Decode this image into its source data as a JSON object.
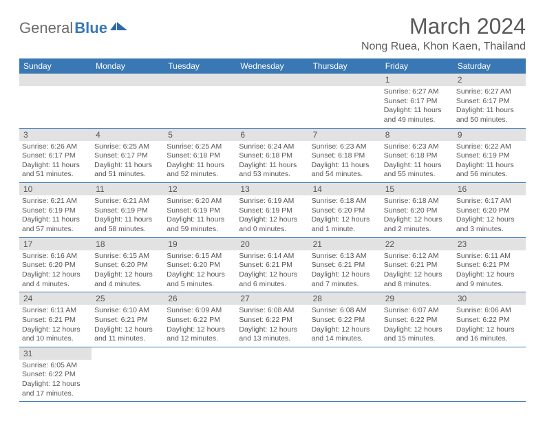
{
  "logo": {
    "text1": "General",
    "text2": "Blue"
  },
  "header": {
    "month_title": "March 2024",
    "location": "Nong Ruea, Khon Kaen, Thailand"
  },
  "colors": {
    "header_bg": "#3a78b5",
    "header_fg": "#ffffff",
    "daynum_bg": "#e2e2e2",
    "row_border": "#3a78b5",
    "text": "#555555"
  },
  "weekdays": [
    "Sunday",
    "Monday",
    "Tuesday",
    "Wednesday",
    "Thursday",
    "Friday",
    "Saturday"
  ],
  "weeks": [
    [
      null,
      null,
      null,
      null,
      null,
      {
        "n": "1",
        "sr": "Sunrise: 6:27 AM",
        "ss": "Sunset: 6:17 PM",
        "d1": "Daylight: 11 hours",
        "d2": "and 49 minutes."
      },
      {
        "n": "2",
        "sr": "Sunrise: 6:27 AM",
        "ss": "Sunset: 6:17 PM",
        "d1": "Daylight: 11 hours",
        "d2": "and 50 minutes."
      }
    ],
    [
      {
        "n": "3",
        "sr": "Sunrise: 6:26 AM",
        "ss": "Sunset: 6:17 PM",
        "d1": "Daylight: 11 hours",
        "d2": "and 51 minutes."
      },
      {
        "n": "4",
        "sr": "Sunrise: 6:25 AM",
        "ss": "Sunset: 6:17 PM",
        "d1": "Daylight: 11 hours",
        "d2": "and 51 minutes."
      },
      {
        "n": "5",
        "sr": "Sunrise: 6:25 AM",
        "ss": "Sunset: 6:18 PM",
        "d1": "Daylight: 11 hours",
        "d2": "and 52 minutes."
      },
      {
        "n": "6",
        "sr": "Sunrise: 6:24 AM",
        "ss": "Sunset: 6:18 PM",
        "d1": "Daylight: 11 hours",
        "d2": "and 53 minutes."
      },
      {
        "n": "7",
        "sr": "Sunrise: 6:23 AM",
        "ss": "Sunset: 6:18 PM",
        "d1": "Daylight: 11 hours",
        "d2": "and 54 minutes."
      },
      {
        "n": "8",
        "sr": "Sunrise: 6:23 AM",
        "ss": "Sunset: 6:18 PM",
        "d1": "Daylight: 11 hours",
        "d2": "and 55 minutes."
      },
      {
        "n": "9",
        "sr": "Sunrise: 6:22 AM",
        "ss": "Sunset: 6:19 PM",
        "d1": "Daylight: 11 hours",
        "d2": "and 56 minutes."
      }
    ],
    [
      {
        "n": "10",
        "sr": "Sunrise: 6:21 AM",
        "ss": "Sunset: 6:19 PM",
        "d1": "Daylight: 11 hours",
        "d2": "and 57 minutes."
      },
      {
        "n": "11",
        "sr": "Sunrise: 6:21 AM",
        "ss": "Sunset: 6:19 PM",
        "d1": "Daylight: 11 hours",
        "d2": "and 58 minutes."
      },
      {
        "n": "12",
        "sr": "Sunrise: 6:20 AM",
        "ss": "Sunset: 6:19 PM",
        "d1": "Daylight: 11 hours",
        "d2": "and 59 minutes."
      },
      {
        "n": "13",
        "sr": "Sunrise: 6:19 AM",
        "ss": "Sunset: 6:19 PM",
        "d1": "Daylight: 12 hours",
        "d2": "and 0 minutes."
      },
      {
        "n": "14",
        "sr": "Sunrise: 6:18 AM",
        "ss": "Sunset: 6:20 PM",
        "d1": "Daylight: 12 hours",
        "d2": "and 1 minute."
      },
      {
        "n": "15",
        "sr": "Sunrise: 6:18 AM",
        "ss": "Sunset: 6:20 PM",
        "d1": "Daylight: 12 hours",
        "d2": "and 2 minutes."
      },
      {
        "n": "16",
        "sr": "Sunrise: 6:17 AM",
        "ss": "Sunset: 6:20 PM",
        "d1": "Daylight: 12 hours",
        "d2": "and 3 minutes."
      }
    ],
    [
      {
        "n": "17",
        "sr": "Sunrise: 6:16 AM",
        "ss": "Sunset: 6:20 PM",
        "d1": "Daylight: 12 hours",
        "d2": "and 4 minutes."
      },
      {
        "n": "18",
        "sr": "Sunrise: 6:15 AM",
        "ss": "Sunset: 6:20 PM",
        "d1": "Daylight: 12 hours",
        "d2": "and 4 minutes."
      },
      {
        "n": "19",
        "sr": "Sunrise: 6:15 AM",
        "ss": "Sunset: 6:20 PM",
        "d1": "Daylight: 12 hours",
        "d2": "and 5 minutes."
      },
      {
        "n": "20",
        "sr": "Sunrise: 6:14 AM",
        "ss": "Sunset: 6:21 PM",
        "d1": "Daylight: 12 hours",
        "d2": "and 6 minutes."
      },
      {
        "n": "21",
        "sr": "Sunrise: 6:13 AM",
        "ss": "Sunset: 6:21 PM",
        "d1": "Daylight: 12 hours",
        "d2": "and 7 minutes."
      },
      {
        "n": "22",
        "sr": "Sunrise: 6:12 AM",
        "ss": "Sunset: 6:21 PM",
        "d1": "Daylight: 12 hours",
        "d2": "and 8 minutes."
      },
      {
        "n": "23",
        "sr": "Sunrise: 6:11 AM",
        "ss": "Sunset: 6:21 PM",
        "d1": "Daylight: 12 hours",
        "d2": "and 9 minutes."
      }
    ],
    [
      {
        "n": "24",
        "sr": "Sunrise: 6:11 AM",
        "ss": "Sunset: 6:21 PM",
        "d1": "Daylight: 12 hours",
        "d2": "and 10 minutes."
      },
      {
        "n": "25",
        "sr": "Sunrise: 6:10 AM",
        "ss": "Sunset: 6:21 PM",
        "d1": "Daylight: 12 hours",
        "d2": "and 11 minutes."
      },
      {
        "n": "26",
        "sr": "Sunrise: 6:09 AM",
        "ss": "Sunset: 6:22 PM",
        "d1": "Daylight: 12 hours",
        "d2": "and 12 minutes."
      },
      {
        "n": "27",
        "sr": "Sunrise: 6:08 AM",
        "ss": "Sunset: 6:22 PM",
        "d1": "Daylight: 12 hours",
        "d2": "and 13 minutes."
      },
      {
        "n": "28",
        "sr": "Sunrise: 6:08 AM",
        "ss": "Sunset: 6:22 PM",
        "d1": "Daylight: 12 hours",
        "d2": "and 14 minutes."
      },
      {
        "n": "29",
        "sr": "Sunrise: 6:07 AM",
        "ss": "Sunset: 6:22 PM",
        "d1": "Daylight: 12 hours",
        "d2": "and 15 minutes."
      },
      {
        "n": "30",
        "sr": "Sunrise: 6:06 AM",
        "ss": "Sunset: 6:22 PM",
        "d1": "Daylight: 12 hours",
        "d2": "and 16 minutes."
      }
    ],
    [
      {
        "n": "31",
        "sr": "Sunrise: 6:05 AM",
        "ss": "Sunset: 6:22 PM",
        "d1": "Daylight: 12 hours",
        "d2": "and 17 minutes."
      },
      null,
      null,
      null,
      null,
      null,
      null
    ]
  ]
}
